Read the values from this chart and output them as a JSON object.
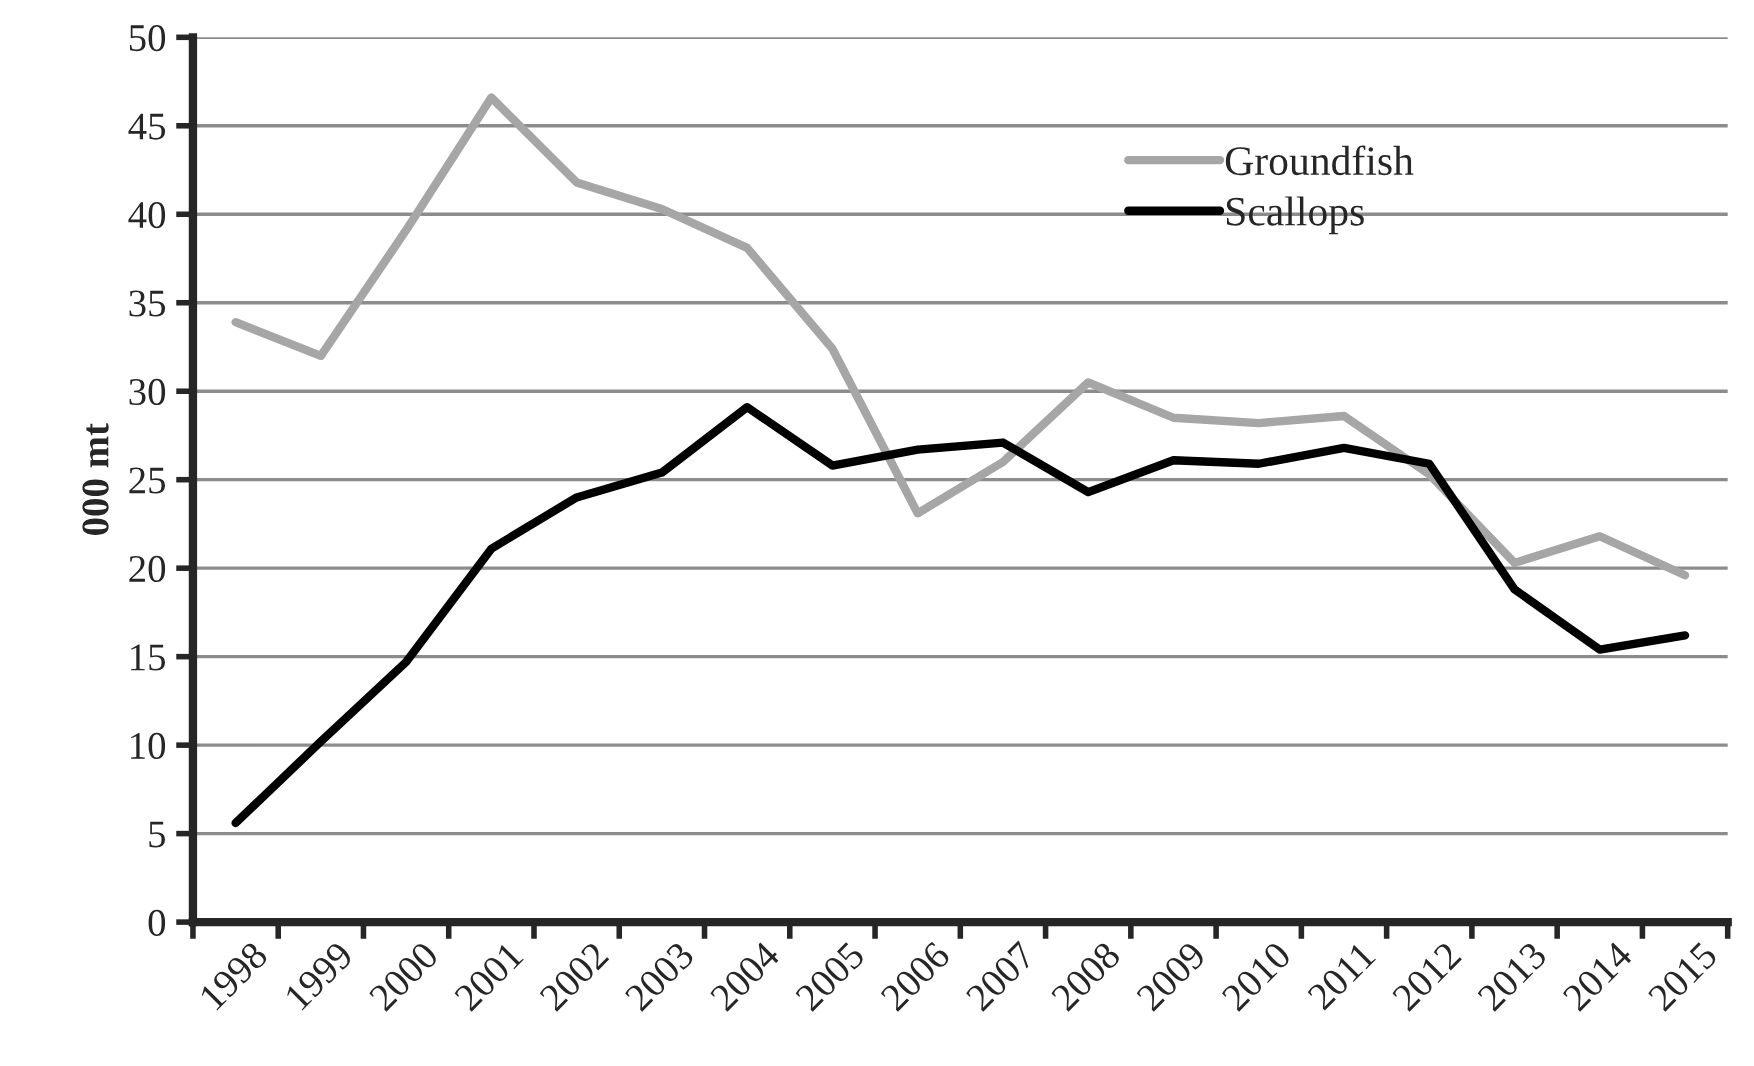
{
  "chart_data": {
    "type": "line",
    "ylabel": "000 mt",
    "categories": [
      "1998",
      "1999",
      "2000",
      "2001",
      "2002",
      "2003",
      "2004",
      "2005",
      "2006",
      "2007",
      "2008",
      "2009",
      "2010",
      "2011",
      "2012",
      "2013",
      "2014",
      "2015"
    ],
    "series": [
      {
        "name": "Groundfish",
        "color": "#a6a6a6",
        "values": [
          33.9,
          32.0,
          39.1,
          46.6,
          41.8,
          40.3,
          38.1,
          32.4,
          23.1,
          26.0,
          30.5,
          28.5,
          28.2,
          28.6,
          25.3,
          20.3,
          21.8,
          19.6
        ]
      },
      {
        "name": "Scallops",
        "color": "#000000",
        "values": [
          5.6,
          10.2,
          14.7,
          21.1,
          24.0,
          25.4,
          29.1,
          25.8,
          26.7,
          27.1,
          24.3,
          26.1,
          25.9,
          26.8,
          25.9,
          18.8,
          15.4,
          16.2
        ]
      }
    ],
    "ylim": [
      0,
      50
    ],
    "yticks": [
      0,
      5,
      10,
      15,
      20,
      25,
      30,
      35,
      40,
      45,
      50
    ],
    "grid": "y",
    "legend": "top right",
    "line_style": "solid",
    "marker": "none"
  }
}
